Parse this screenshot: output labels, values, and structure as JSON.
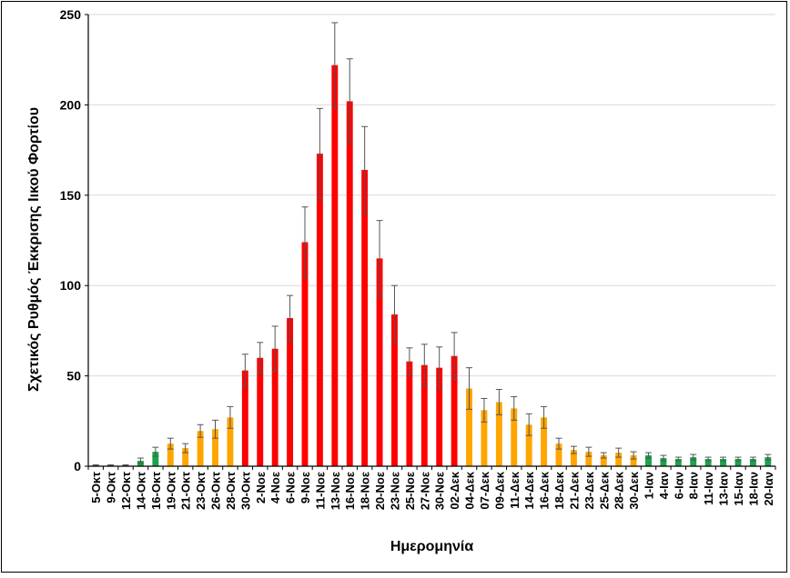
{
  "chart_data": {
    "type": "bar",
    "xlabel": "Ημερομηνία",
    "ylabel": "Σχετικός Ρυθμός Έκκρισης Ιικού Φορτίου",
    "ylim": [
      0,
      250
    ],
    "yticks": [
      0,
      50,
      100,
      150,
      200,
      250
    ],
    "grid": true,
    "legend": "none",
    "colors": {
      "green": "#1aa34a",
      "orange": "#ffa500",
      "red": "#ff0000",
      "error": "#555555"
    },
    "categories": [
      "5-Οκτ",
      "9-Οκτ",
      "12-Οκτ",
      "14-Οκτ",
      "16-Οκτ",
      "19-Οκτ",
      "21-Οκτ",
      "23-Οκτ",
      "26-Οκτ",
      "28-Οκτ",
      "30-Οκτ",
      "2-Νοε",
      "4-Νοε",
      "6-Νοε",
      "9-Νοε",
      "11-Νοε",
      "13-Νοε",
      "16-Νοε",
      "18-Νοε",
      "20-Νοε",
      "23-Νοε",
      "25-Νοε",
      "27-Νοε",
      "30-Νοε",
      "02-Δεκ",
      "04-Δεκ",
      "07-Δεκ",
      "09-Δεκ",
      "11-Δεκ",
      "14-Δεκ",
      "16-Δεκ",
      "18-Δεκ",
      "21-Δεκ",
      "23-Δεκ",
      "25-Δεκ",
      "28-Δεκ",
      "30-Δεκ",
      "1-Ιαν",
      "4-Ιαν",
      "6-Ιαν",
      "8-Ιαν",
      "11-Ιαν",
      "13-Ιαν",
      "15-Ιαν",
      "18-Ιαν",
      "20-Ιαν"
    ],
    "values": [
      0.5,
      0.5,
      0.5,
      3,
      8,
      12.5,
      10,
      19.5,
      20.5,
      27,
      53,
      60,
      65,
      82,
      124,
      173,
      222,
      202,
      164,
      115,
      84,
      58,
      56,
      54.5,
      61,
      43,
      31,
      35.5,
      32,
      23,
      27,
      12.5,
      9,
      8,
      6,
      7.5,
      6,
      6,
      4.5,
      4,
      5,
      4,
      4,
      4,
      4,
      5
    ],
    "errors": [
      0.3,
      0.3,
      0.3,
      1.5,
      2.5,
      3,
      2.5,
      3.5,
      5,
      6,
      9,
      8.5,
      12.5,
      12.5,
      19.5,
      25,
      23.5,
      23.5,
      24,
      21,
      16,
      7.5,
      11.5,
      11.5,
      13,
      11.5,
      6.5,
      7,
      6.5,
      6,
      6,
      3,
      2,
      2.5,
      1.5,
      2.5,
      2,
      1.5,
      1.5,
      1,
      1.5,
      1,
      1,
      1,
      1,
      1.5
    ],
    "color_groups": [
      "green",
      "green",
      "green",
      "green",
      "green",
      "orange",
      "orange",
      "orange",
      "orange",
      "orange",
      "red",
      "red",
      "red",
      "red",
      "red",
      "red",
      "red",
      "red",
      "red",
      "red",
      "red",
      "red",
      "red",
      "red",
      "red",
      "orange",
      "orange",
      "orange",
      "orange",
      "orange",
      "orange",
      "orange",
      "orange",
      "orange",
      "orange",
      "orange",
      "orange",
      "green",
      "green",
      "green",
      "green",
      "green",
      "green",
      "green",
      "green",
      "green"
    ]
  }
}
